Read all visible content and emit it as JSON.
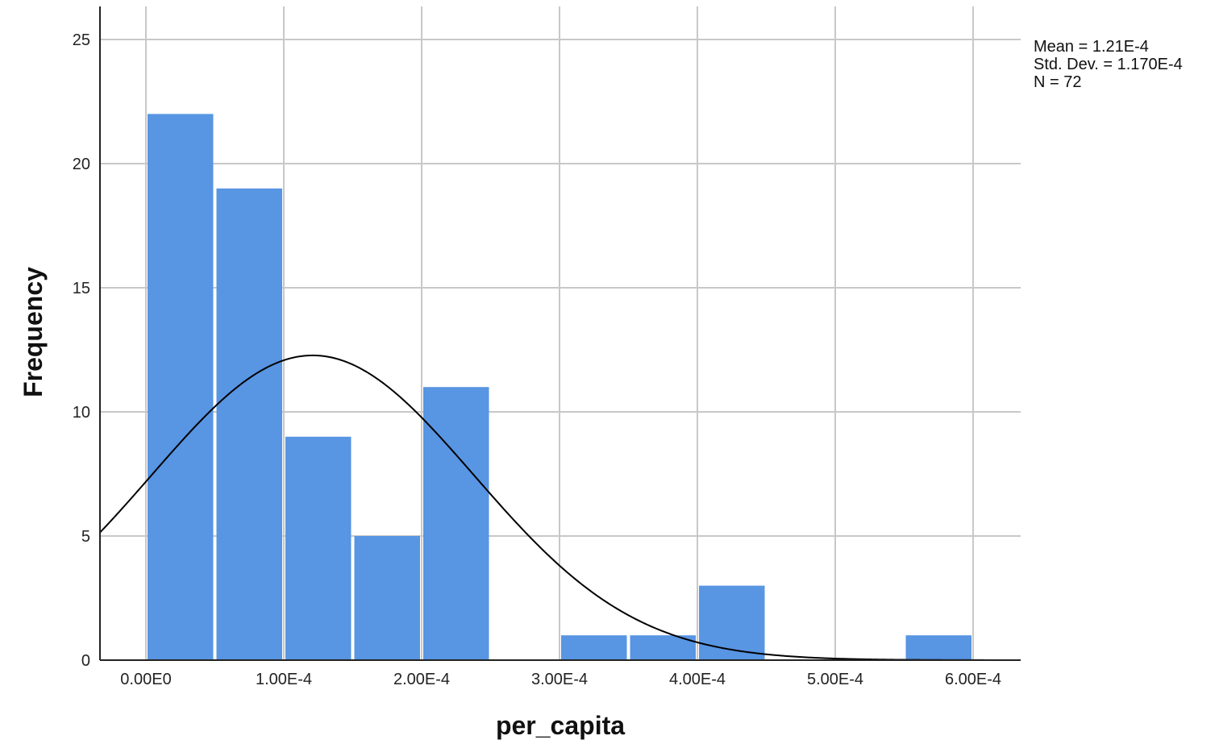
{
  "chart_data": {
    "type": "bar",
    "subtype": "histogram",
    "xlabel": "per_capita",
    "ylabel": "Frequency",
    "x_ticks": [
      {
        "value": 0.0,
        "label": "0.00E0"
      },
      {
        "value": 0.0001,
        "label": "1.00E-4"
      },
      {
        "value": 0.0002,
        "label": "2.00E-4"
      },
      {
        "value": 0.0003,
        "label": "3.00E-4"
      },
      {
        "value": 0.0004,
        "label": "4.00E-4"
      },
      {
        "value": 0.0005,
        "label": "5.00E-4"
      },
      {
        "value": 0.0006,
        "label": "6.00E-4"
      }
    ],
    "y_ticks": [
      0,
      5,
      10,
      15,
      20,
      25
    ],
    "xlim": [
      -3e-05,
      0.00063
    ],
    "ylim": [
      0,
      26.3
    ],
    "bin_width": 5e-05,
    "bins": [
      {
        "x0": 0.0,
        "x1": 5e-05,
        "count": 22
      },
      {
        "x0": 5e-05,
        "x1": 0.0001,
        "count": 19
      },
      {
        "x0": 0.0001,
        "x1": 0.00015,
        "count": 9
      },
      {
        "x0": 0.00015,
        "x1": 0.0002,
        "count": 5
      },
      {
        "x0": 0.0002,
        "x1": 0.00025,
        "count": 11
      },
      {
        "x0": 0.00025,
        "x1": 0.0003,
        "count": 0
      },
      {
        "x0": 0.0003,
        "x1": 0.00035,
        "count": 1
      },
      {
        "x0": 0.00035,
        "x1": 0.0004,
        "count": 1
      },
      {
        "x0": 0.0004,
        "x1": 0.00045,
        "count": 3
      },
      {
        "x0": 0.00045,
        "x1": 0.0005,
        "count": 0
      },
      {
        "x0": 0.0005,
        "x1": 0.00055,
        "count": 0
      },
      {
        "x0": 0.00055,
        "x1": 0.0006,
        "count": 1
      }
    ],
    "normal_curve": {
      "mean": 0.000121,
      "std": 0.000117,
      "n": 72
    },
    "grid": true,
    "bar_color": "#5895E3",
    "curve_color": "#000000",
    "stats_text": [
      "Mean = 1.21E-4",
      "Std. Dev. = 1.170E-4",
      "N = 72"
    ]
  }
}
